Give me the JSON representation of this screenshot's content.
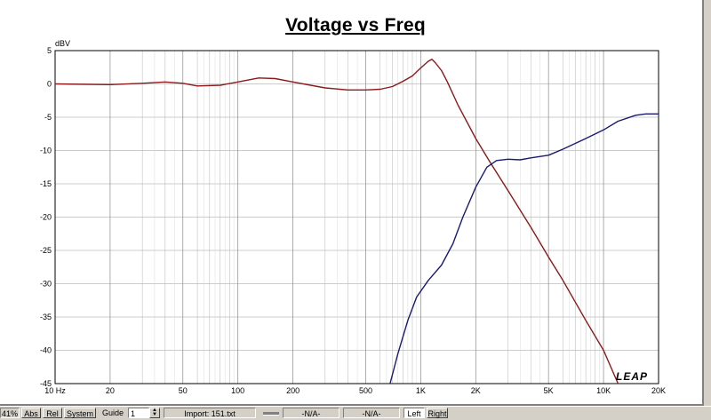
{
  "window": {
    "title": "Voltage vs Freq",
    "logo": "LEAP"
  },
  "chart_data": {
    "type": "line",
    "title": "Voltage vs Freq",
    "ylabel": "dBV",
    "xlabel": "",
    "xscale": "log",
    "xlim": [
      10,
      20000
    ],
    "ylim": [
      -45,
      5
    ],
    "grid": true,
    "x_tick_labels": [
      {
        "value": 10,
        "label": "10 Hz"
      },
      {
        "value": 20,
        "label": "20"
      },
      {
        "value": 50,
        "label": "50"
      },
      {
        "value": 100,
        "label": "100"
      },
      {
        "value": 200,
        "label": "200"
      },
      {
        "value": 500,
        "label": "500"
      },
      {
        "value": 1000,
        "label": "1K"
      },
      {
        "value": 2000,
        "label": "2K"
      },
      {
        "value": 5000,
        "label": "5K"
      },
      {
        "value": 10000,
        "label": "10K"
      },
      {
        "value": 20000,
        "label": "20K"
      }
    ],
    "y_tick_labels": [
      "5",
      "0",
      "-5",
      "-10",
      "-15",
      "-20",
      "-25",
      "-30",
      "-35",
      "-40",
      "-45"
    ],
    "series": [
      {
        "color": "#8b1a1a",
        "points": [
          [
            10,
            0
          ],
          [
            20,
            -0.1
          ],
          [
            30,
            0.1
          ],
          [
            40,
            0.3
          ],
          [
            50,
            0.1
          ],
          [
            60,
            -0.3
          ],
          [
            80,
            -0.2
          ],
          [
            100,
            0.3
          ],
          [
            130,
            0.9
          ],
          [
            160,
            0.8
          ],
          [
            200,
            0.3
          ],
          [
            250,
            -0.2
          ],
          [
            300,
            -0.6
          ],
          [
            400,
            -0.9
          ],
          [
            500,
            -0.9
          ],
          [
            600,
            -0.8
          ],
          [
            700,
            -0.4
          ],
          [
            800,
            0.4
          ],
          [
            900,
            1.2
          ],
          [
            1000,
            2.4
          ],
          [
            1100,
            3.4
          ],
          [
            1150,
            3.7
          ],
          [
            1200,
            3.2
          ],
          [
            1300,
            2.0
          ],
          [
            1400,
            0.3
          ],
          [
            1600,
            -3.2
          ],
          [
            2000,
            -8.2
          ],
          [
            2400,
            -11.8
          ],
          [
            3000,
            -16
          ],
          [
            4000,
            -21.5
          ],
          [
            5000,
            -26
          ],
          [
            6000,
            -29.5
          ],
          [
            8000,
            -35.5
          ],
          [
            10000,
            -40
          ],
          [
            12000,
            -45
          ]
        ]
      },
      {
        "color": "#1a1a70",
        "points": [
          [
            680,
            -45
          ],
          [
            750,
            -40.5
          ],
          [
            850,
            -35.5
          ],
          [
            950,
            -32
          ],
          [
            1100,
            -29.5
          ],
          [
            1300,
            -27.2
          ],
          [
            1500,
            -24
          ],
          [
            1700,
            -20
          ],
          [
            2000,
            -15.5
          ],
          [
            2300,
            -12.5
          ],
          [
            2600,
            -11.5
          ],
          [
            3000,
            -11.3
          ],
          [
            3500,
            -11.4
          ],
          [
            4000,
            -11.1
          ],
          [
            5000,
            -10.7
          ],
          [
            6000,
            -9.8
          ],
          [
            8000,
            -8.2
          ],
          [
            10000,
            -6.9
          ],
          [
            12000,
            -5.6
          ],
          [
            15000,
            -4.7
          ],
          [
            17000,
            -4.5
          ],
          [
            20000,
            -4.5
          ]
        ]
      }
    ]
  },
  "statusbar": {
    "zoom": "41%",
    "abs": "Abs",
    "rel": "Rel",
    "system": "System",
    "guide_label": "Guide",
    "guide_value": "1",
    "import_file": "Import: 151.txt",
    "field1": "-N/A-",
    "field2": "-N/A-",
    "left": "Left",
    "right": "Right"
  }
}
